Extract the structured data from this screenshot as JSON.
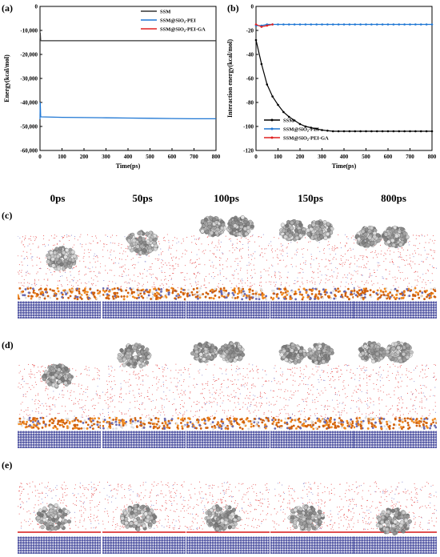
{
  "panels": {
    "a": "(a)",
    "b": "(b)",
    "c": "(c)",
    "d": "(d)",
    "e": "(e)"
  },
  "time_labels": [
    "0ps",
    "50ps",
    "100ps",
    "150ps",
    "800ps"
  ],
  "chart_data": [
    {
      "type": "line",
      "panel": "a",
      "xlabel": "Time(ps)",
      "ylabel": "Energy(kcal/mol)",
      "xlim": [
        0,
        800
      ],
      "ylim": [
        -60000,
        0
      ],
      "xticks": [
        0,
        100,
        200,
        300,
        400,
        500,
        600,
        700,
        800
      ],
      "yticks": [
        0,
        -10000,
        -20000,
        -30000,
        -40000,
        -50000,
        -60000
      ],
      "ytick_labels": [
        "0",
        "-10,000",
        "-20,000",
        "-30,000",
        "-40,000",
        "-50,000",
        "-60,000"
      ],
      "legend": "top-right",
      "series": [
        {
          "name": "SSM",
          "color": "#333333",
          "x": [
            0,
            1,
            3,
            5,
            100,
            200,
            300,
            400,
            500,
            600,
            700,
            800
          ],
          "y": [
            -14500,
            -11000,
            -14200,
            -14300,
            -14300,
            -14300,
            -14300,
            -14300,
            -14300,
            -14300,
            -14300,
            -14300
          ]
        },
        {
          "name": "SSM@SiO₂-PEI",
          "color": "#1f77d4",
          "x": [
            0,
            1,
            3,
            5,
            100,
            200,
            300,
            400,
            500,
            600,
            700,
            800
          ],
          "y": [
            -47000,
            -40000,
            -45800,
            -46000,
            -46200,
            -46300,
            -46400,
            -46500,
            -46600,
            -46700,
            -46800,
            -46800
          ]
        },
        {
          "name": "SSM@SiO₂-PEI-GA",
          "color": "#e02020",
          "x": [],
          "y": []
        }
      ]
    },
    {
      "type": "line",
      "panel": "b",
      "xlabel": "Time(ps)",
      "ylabel": "Interaction energy(kcal/mol)",
      "xlim": [
        0,
        800
      ],
      "ylim": [
        -120,
        0
      ],
      "xticks": [
        0,
        100,
        200,
        300,
        400,
        500,
        600,
        700,
        800
      ],
      "yticks": [
        0,
        -20,
        -40,
        -60,
        -80,
        -100,
        -120
      ],
      "legend": "bottom-left",
      "series": [
        {
          "name": "SSM",
          "color": "#000000",
          "x": [
            0,
            25,
            50,
            75,
            100,
            125,
            150,
            175,
            200,
            225,
            250,
            275,
            300,
            325,
            350,
            375,
            400,
            425,
            450,
            475,
            500,
            525,
            550,
            575,
            600,
            625,
            650,
            675,
            700,
            725,
            750,
            775,
            800
          ],
          "y": [
            -28,
            -48,
            -65,
            -75,
            -82,
            -88,
            -92,
            -95,
            -98,
            -100,
            -101,
            -102,
            -103,
            -103.5,
            -104,
            -104,
            -104,
            -104,
            -104,
            -104,
            -104,
            -104,
            -104,
            -104,
            -104,
            -104,
            -104,
            -104,
            -104,
            -104,
            -104,
            -104,
            -104
          ]
        },
        {
          "name": "SSM@SiO₂-PEI",
          "color": "#1f77d4",
          "x": [
            0,
            25,
            50,
            75,
            100,
            125,
            150,
            175,
            200,
            225,
            250,
            275,
            300,
            325,
            350,
            375,
            400,
            425,
            450,
            475,
            500,
            525,
            550,
            575,
            600,
            625,
            650,
            675,
            700,
            725,
            750,
            775,
            800
          ],
          "y": [
            -16,
            -16,
            -15,
            -15,
            -15,
            -15,
            -15,
            -15,
            -15,
            -15,
            -15,
            -15,
            -15,
            -15,
            -15,
            -15,
            -15,
            -15,
            -15,
            -15,
            -15,
            -15,
            -15,
            -15,
            -15,
            -15,
            -15,
            -15,
            -15,
            -15,
            -15,
            -15,
            -15
          ]
        },
        {
          "name": "SSM@SiO₂-PEI-GA",
          "color": "#e02020",
          "x": [
            0,
            25,
            50,
            75
          ],
          "y": [
            -15,
            -17,
            -16,
            -15
          ]
        }
      ]
    }
  ]
}
